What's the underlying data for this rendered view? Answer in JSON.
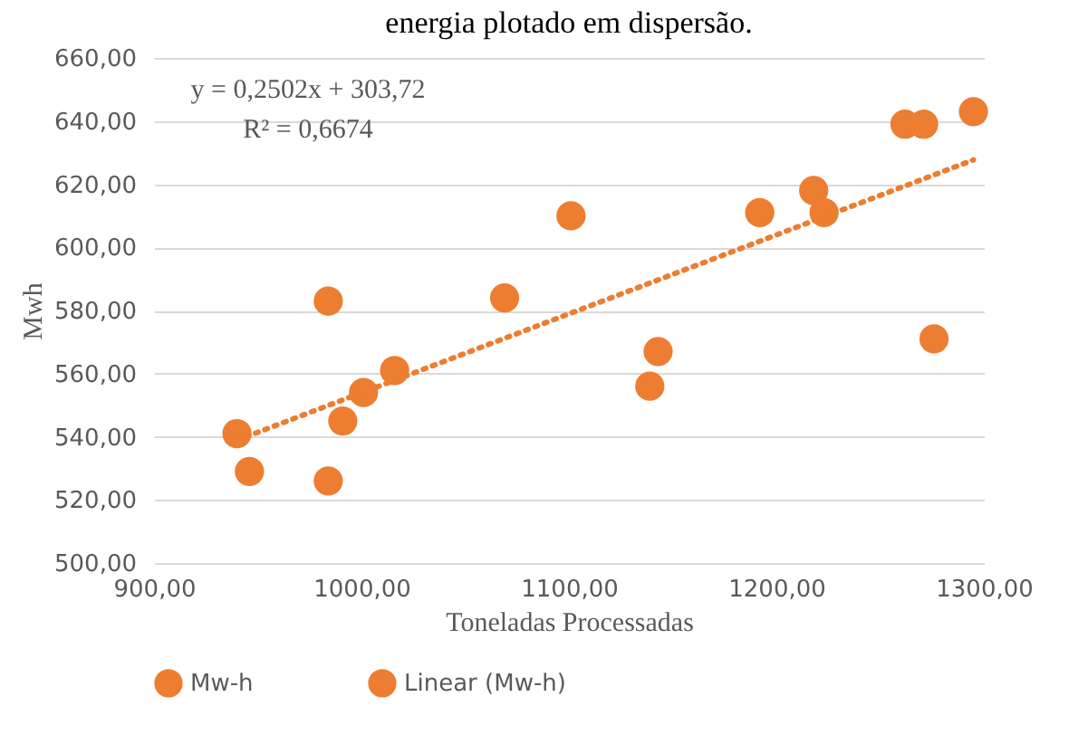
{
  "chart_data": {
    "type": "scatter",
    "title": "energia plotado em dispersão.",
    "xlabel": "Toneladas Processadas",
    "ylabel": "Mwh",
    "xlim": [
      900,
      1300
    ],
    "xticks": [
      {
        "value": 900,
        "label": "900,00"
      },
      {
        "value": 1000,
        "label": "1000,00"
      },
      {
        "value": 1100,
        "label": "1100,00"
      },
      {
        "value": 1200,
        "label": "1200,00"
      },
      {
        "value": 1300,
        "label": "1300,00"
      }
    ],
    "ylim": [
      500,
      660
    ],
    "yticks": [
      {
        "value": 500,
        "label": "500,00"
      },
      {
        "value": 520,
        "label": "520,00"
      },
      {
        "value": 540,
        "label": "540,00"
      },
      {
        "value": 560,
        "label": "560,00"
      },
      {
        "value": 580,
        "label": "580,00"
      },
      {
        "value": 600,
        "label": "600,00"
      },
      {
        "value": 620,
        "label": "620,00"
      },
      {
        "value": 640,
        "label": "640,00"
      },
      {
        "value": 660,
        "label": "660,00"
      }
    ],
    "grid": "y",
    "legend": "bottom",
    "annotations": [
      "y = 0,2502x + 303,72",
      "R² = 0,6674"
    ],
    "series": [
      {
        "name": "Mw-h",
        "color": "#ed7d31",
        "marker": "circle",
        "x": [
          940,
          946,
          984,
          984,
          991,
          1001,
          1016,
          1069,
          1101,
          1139,
          1143,
          1192,
          1218,
          1223,
          1262,
          1271,
          1295,
          1276
        ],
        "values": [
          541,
          529,
          526,
          583,
          545,
          554,
          561,
          584,
          610,
          556,
          567,
          611,
          618,
          611,
          639,
          639,
          643,
          571
        ]
      },
      {
        "name": "Linear (Mw-h)",
        "type": "line",
        "line_style": "dotted",
        "color": "#ed7d31",
        "x": [
          940,
          1295
        ],
        "values": [
          538.9,
          627.7
        ]
      }
    ]
  }
}
